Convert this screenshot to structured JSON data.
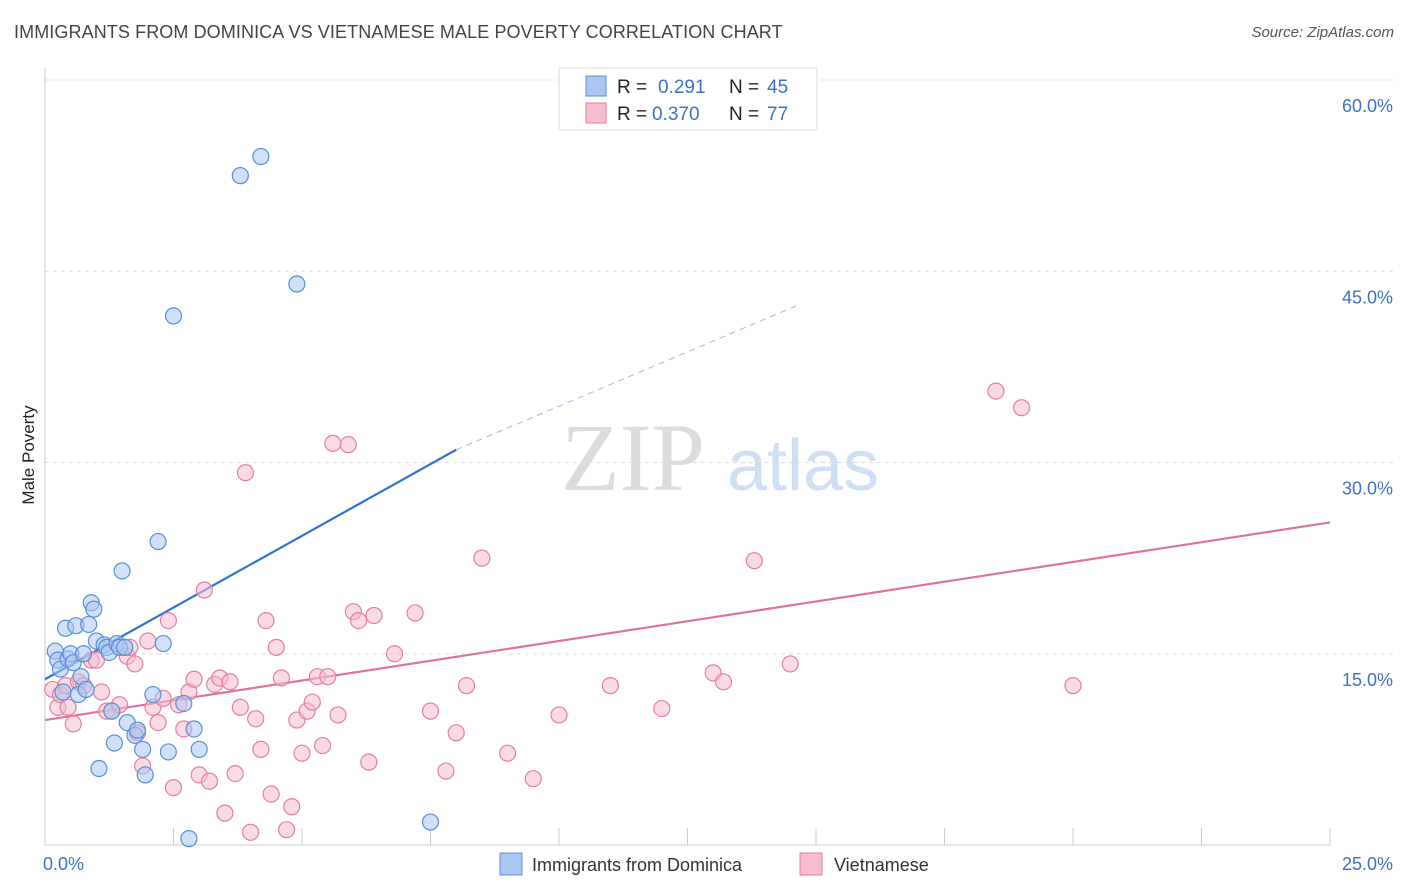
{
  "title": "IMMIGRANTS FROM DOMINICA VS VIETNAMESE MALE POVERTY CORRELATION CHART",
  "source": "Source: ZipAtlas.com",
  "watermark": {
    "zip": "ZIP",
    "atlas": "atlas"
  },
  "colors": {
    "blue_fill": "#a9c7f0",
    "blue_stroke": "#5b8ed8",
    "blue_line": "#2e75d0",
    "pink_fill": "#f6bcd0",
    "pink_stroke": "#e57fa3",
    "pink_line": "#e0729b",
    "tick_text": "#3b73c4",
    "grid": "#dddddd"
  },
  "legend": {
    "r_label": "R =",
    "n_label": "N =",
    "rows": [
      {
        "r": "0.291",
        "n": "45"
      },
      {
        "r": "0.370",
        "n": "77"
      }
    ]
  },
  "chart_data": {
    "type": "scatter",
    "title": "IMMIGRANTS FROM DOMINICA VS VIETNAMESE MALE POVERTY CORRELATION CHART",
    "xlabel": "",
    "ylabel": "Male Poverty",
    "xlim": [
      0,
      25
    ],
    "ylim": [
      0,
      60
    ],
    "x_tick_labels": [
      "0.0%",
      "25.0%"
    ],
    "y_ticks": [
      15,
      30,
      45,
      60
    ],
    "y_tick_labels": [
      "15.0%",
      "30.0%",
      "45.0%",
      "60.0%"
    ],
    "grid": true,
    "legend_position": "top-center",
    "series": [
      {
        "name": "Immigrants from Dominica",
        "r": 0.291,
        "n": 45,
        "trend": {
          "x0": 0,
          "y0": 13.0,
          "x1": 8.0,
          "y1": 31.0,
          "dashed_to_x": 25,
          "dashed_to_y": 60
        },
        "points": [
          [
            0.2,
            15.2
          ],
          [
            0.25,
            14.5
          ],
          [
            0.3,
            13.8
          ],
          [
            0.35,
            12.0
          ],
          [
            0.4,
            17.0
          ],
          [
            0.45,
            14.6
          ],
          [
            0.5,
            15.0
          ],
          [
            0.55,
            14.3
          ],
          [
            0.6,
            17.2
          ],
          [
            0.65,
            11.8
          ],
          [
            0.7,
            13.2
          ],
          [
            0.75,
            15.0
          ],
          [
            0.8,
            12.2
          ],
          [
            0.85,
            17.3
          ],
          [
            0.9,
            19.0
          ],
          [
            0.95,
            18.5
          ],
          [
            1.0,
            16.0
          ],
          [
            1.05,
            6.0
          ],
          [
            1.15,
            15.7
          ],
          [
            1.2,
            15.5
          ],
          [
            1.25,
            15.1
          ],
          [
            1.3,
            10.5
          ],
          [
            1.35,
            8.0
          ],
          [
            1.4,
            15.8
          ],
          [
            1.45,
            15.5
          ],
          [
            1.5,
            21.5
          ],
          [
            1.55,
            15.5
          ],
          [
            1.6,
            9.6
          ],
          [
            1.75,
            8.6
          ],
          [
            1.8,
            9.0
          ],
          [
            1.9,
            7.5
          ],
          [
            1.95,
            5.5
          ],
          [
            2.1,
            11.8
          ],
          [
            2.2,
            23.8
          ],
          [
            2.3,
            15.8
          ],
          [
            2.4,
            7.3
          ],
          [
            2.5,
            41.5
          ],
          [
            2.7,
            11.1
          ],
          [
            2.9,
            9.1
          ],
          [
            2.8,
            0.5
          ],
          [
            3.0,
            7.5
          ],
          [
            3.8,
            52.5
          ],
          [
            4.2,
            54.0
          ],
          [
            4.9,
            44.0
          ],
          [
            7.5,
            1.8
          ]
        ]
      },
      {
        "name": "Vietnamese",
        "r": 0.37,
        "n": 77,
        "trend": {
          "x0": 0,
          "y0": 9.8,
          "x1": 25,
          "y1": 25.3
        },
        "points": [
          [
            0.15,
            12.2
          ],
          [
            0.25,
            10.8
          ],
          [
            0.3,
            11.8
          ],
          [
            0.4,
            12.5
          ],
          [
            0.45,
            10.8
          ],
          [
            0.55,
            9.5
          ],
          [
            0.65,
            12.8
          ],
          [
            0.75,
            12.5
          ],
          [
            0.9,
            14.5
          ],
          [
            1.0,
            14.5
          ],
          [
            1.1,
            12.0
          ],
          [
            1.2,
            10.5
          ],
          [
            1.3,
            10.5
          ],
          [
            1.45,
            11.0
          ],
          [
            1.6,
            14.8
          ],
          [
            1.65,
            15.5
          ],
          [
            1.75,
            14.2
          ],
          [
            1.8,
            8.8
          ],
          [
            1.9,
            6.2
          ],
          [
            2.0,
            16.0
          ],
          [
            2.1,
            10.8
          ],
          [
            2.2,
            9.6
          ],
          [
            2.3,
            11.5
          ],
          [
            2.4,
            17.6
          ],
          [
            2.5,
            4.5
          ],
          [
            2.6,
            11.0
          ],
          [
            2.7,
            9.1
          ],
          [
            2.8,
            12.0
          ],
          [
            2.9,
            13.0
          ],
          [
            3.0,
            5.5
          ],
          [
            3.1,
            20.0
          ],
          [
            3.2,
            5.0
          ],
          [
            3.3,
            12.6
          ],
          [
            3.4,
            13.1
          ],
          [
            3.5,
            2.5
          ],
          [
            3.6,
            12.8
          ],
          [
            3.7,
            5.6
          ],
          [
            3.8,
            10.8
          ],
          [
            3.9,
            29.2
          ],
          [
            4.0,
            1.0
          ],
          [
            4.1,
            9.9
          ],
          [
            4.2,
            7.5
          ],
          [
            4.3,
            17.6
          ],
          [
            4.4,
            4.0
          ],
          [
            4.5,
            15.5
          ],
          [
            4.6,
            13.1
          ],
          [
            4.7,
            1.2
          ],
          [
            4.8,
            3.0
          ],
          [
            4.9,
            9.8
          ],
          [
            5.0,
            7.2
          ],
          [
            5.1,
            10.5
          ],
          [
            5.2,
            11.2
          ],
          [
            5.3,
            13.2
          ],
          [
            5.4,
            7.8
          ],
          [
            5.5,
            13.2
          ],
          [
            5.6,
            31.5
          ],
          [
            5.7,
            10.2
          ],
          [
            5.9,
            31.4
          ],
          [
            6.0,
            18.3
          ],
          [
            6.1,
            17.6
          ],
          [
            6.3,
            6.5
          ],
          [
            6.4,
            18.0
          ],
          [
            6.8,
            15.0
          ],
          [
            7.2,
            18.2
          ],
          [
            7.5,
            10.5
          ],
          [
            7.8,
            5.8
          ],
          [
            8.0,
            8.8
          ],
          [
            8.2,
            12.5
          ],
          [
            8.5,
            22.5
          ],
          [
            9.0,
            7.2
          ],
          [
            9.5,
            5.2
          ],
          [
            10.0,
            10.2
          ],
          [
            11.0,
            12.5
          ],
          [
            12.0,
            10.7
          ],
          [
            13.0,
            13.5
          ],
          [
            14.5,
            14.2
          ],
          [
            18.5,
            35.6
          ]
        ],
        "extra_points": [
          [
            19.0,
            34.3
          ],
          [
            20.0,
            12.5
          ],
          [
            13.2,
            12.8
          ],
          [
            13.8,
            22.3
          ]
        ]
      }
    ]
  }
}
